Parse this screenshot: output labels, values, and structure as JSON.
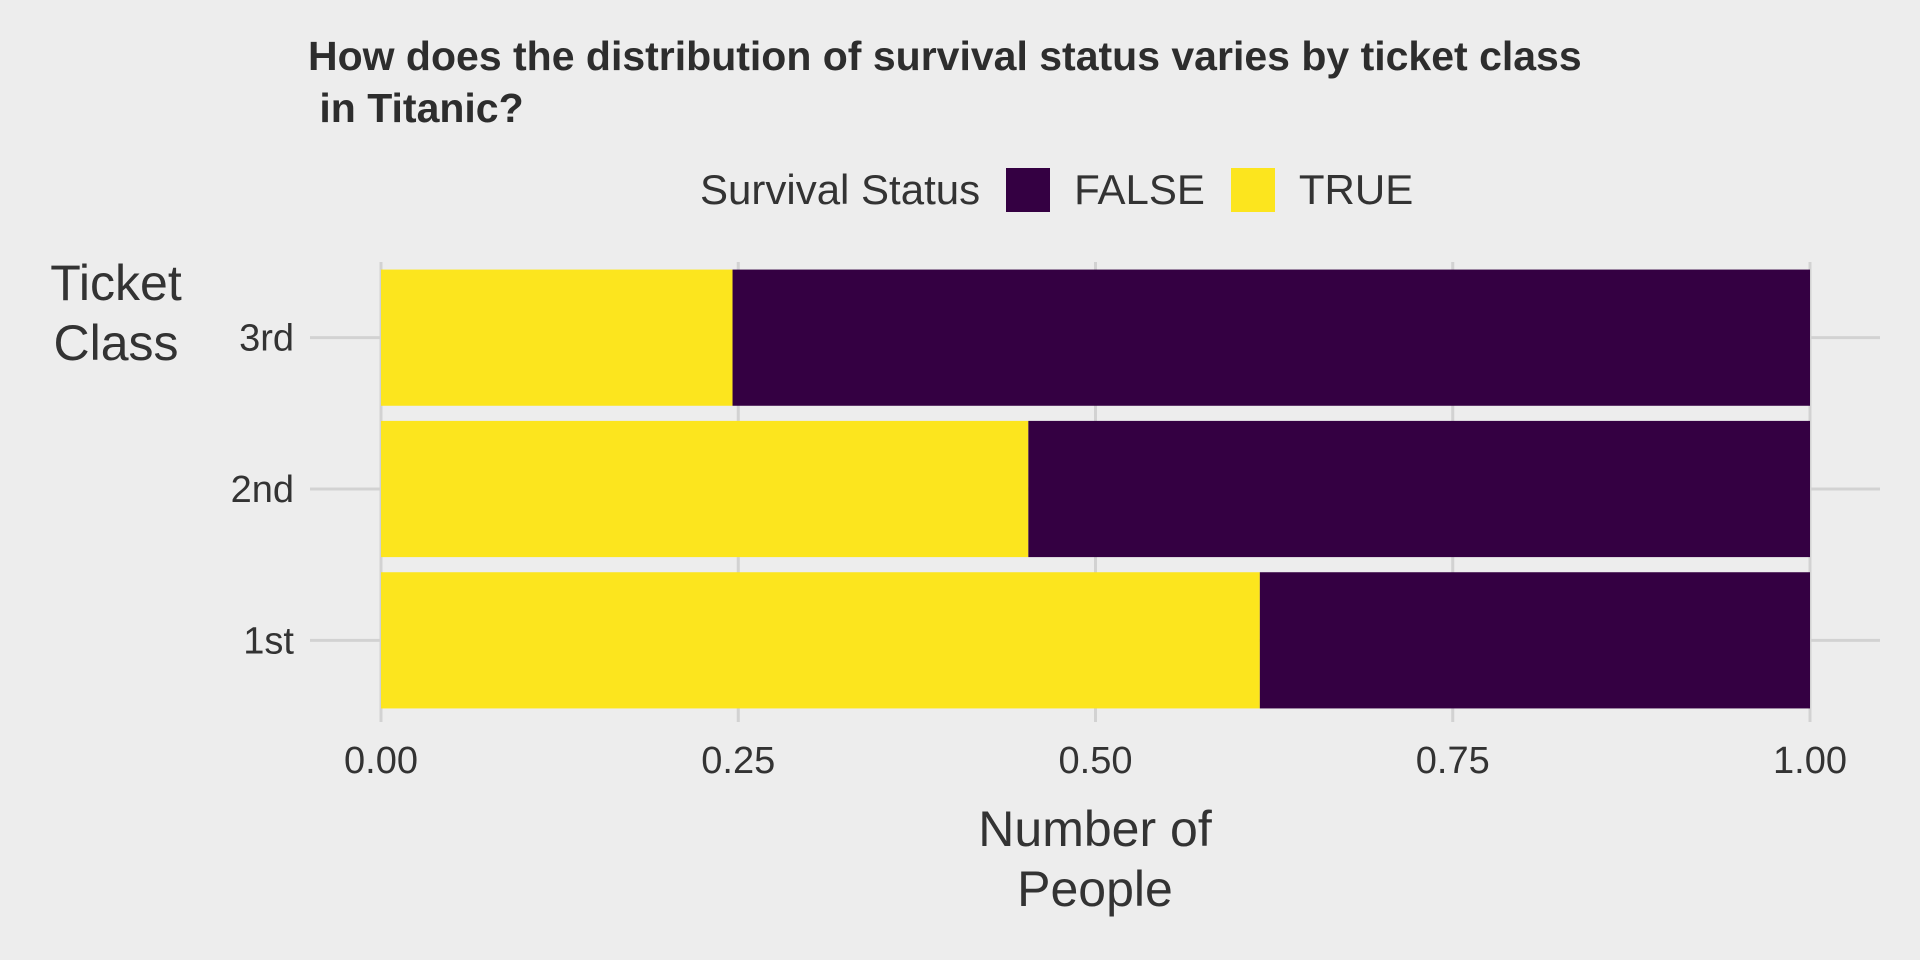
{
  "chart_data": {
    "type": "bar",
    "orientation": "horizontal",
    "stacked": "proportion",
    "title": "How does the distribution of survival status varies by ticket class\n in Titanic?",
    "xlabel": "Number of\nPeople",
    "ylabel": "Ticket\nClass",
    "categories": [
      "1st",
      "2nd",
      "3rd"
    ],
    "xlim": [
      0,
      1
    ],
    "xticks": [
      "0.00",
      "0.25",
      "0.50",
      "0.75",
      "1.00"
    ],
    "legend": {
      "title": "Survival Status",
      "position": "top",
      "entries": [
        {
          "label": "FALSE",
          "color": "#340042"
        },
        {
          "label": "TRUE",
          "color": "#fce51e"
        }
      ]
    },
    "series": [
      {
        "name": "TRUE",
        "color": "#fce51e",
        "values": [
          0.615,
          0.453,
          0.246
        ]
      },
      {
        "name": "FALSE",
        "color": "#340042",
        "values": [
          0.385,
          0.547,
          0.754
        ]
      }
    ],
    "grid": true
  }
}
